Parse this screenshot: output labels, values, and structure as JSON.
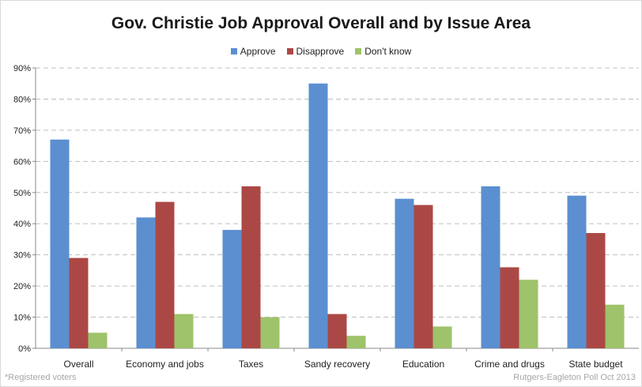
{
  "colors": {
    "approve": "#5b8fd0",
    "disapprove": "#ab4845",
    "dont_know": "#9ec36a",
    "grid": "#bfbfbf"
  },
  "footnote_left": "*Registered voters",
  "footnote_right": "Rutgers-Eagleton Poll Oct 2013",
  "chart_data": {
    "type": "bar",
    "title": "Gov. Christie Job Approval Overall and by Issue Area",
    "categories": [
      "Overall",
      "Economy and jobs",
      "Taxes",
      "Sandy recovery",
      "Education",
      "Crime and drugs",
      "State budget"
    ],
    "series": [
      {
        "name": "Approve",
        "values": [
          67,
          42,
          38,
          85,
          48,
          52,
          49
        ]
      },
      {
        "name": "Disapprove",
        "values": [
          29,
          47,
          52,
          11,
          46,
          26,
          37
        ]
      },
      {
        "name": "Don't know",
        "values": [
          5,
          11,
          10,
          4,
          7,
          22,
          14
        ]
      }
    ],
    "ylim": [
      0,
      90
    ],
    "yticks": [
      "0%",
      "10%",
      "20%",
      "30%",
      "40%",
      "50%",
      "60%",
      "70%",
      "80%",
      "90%"
    ],
    "grid": true,
    "legend_position": "top-center"
  }
}
